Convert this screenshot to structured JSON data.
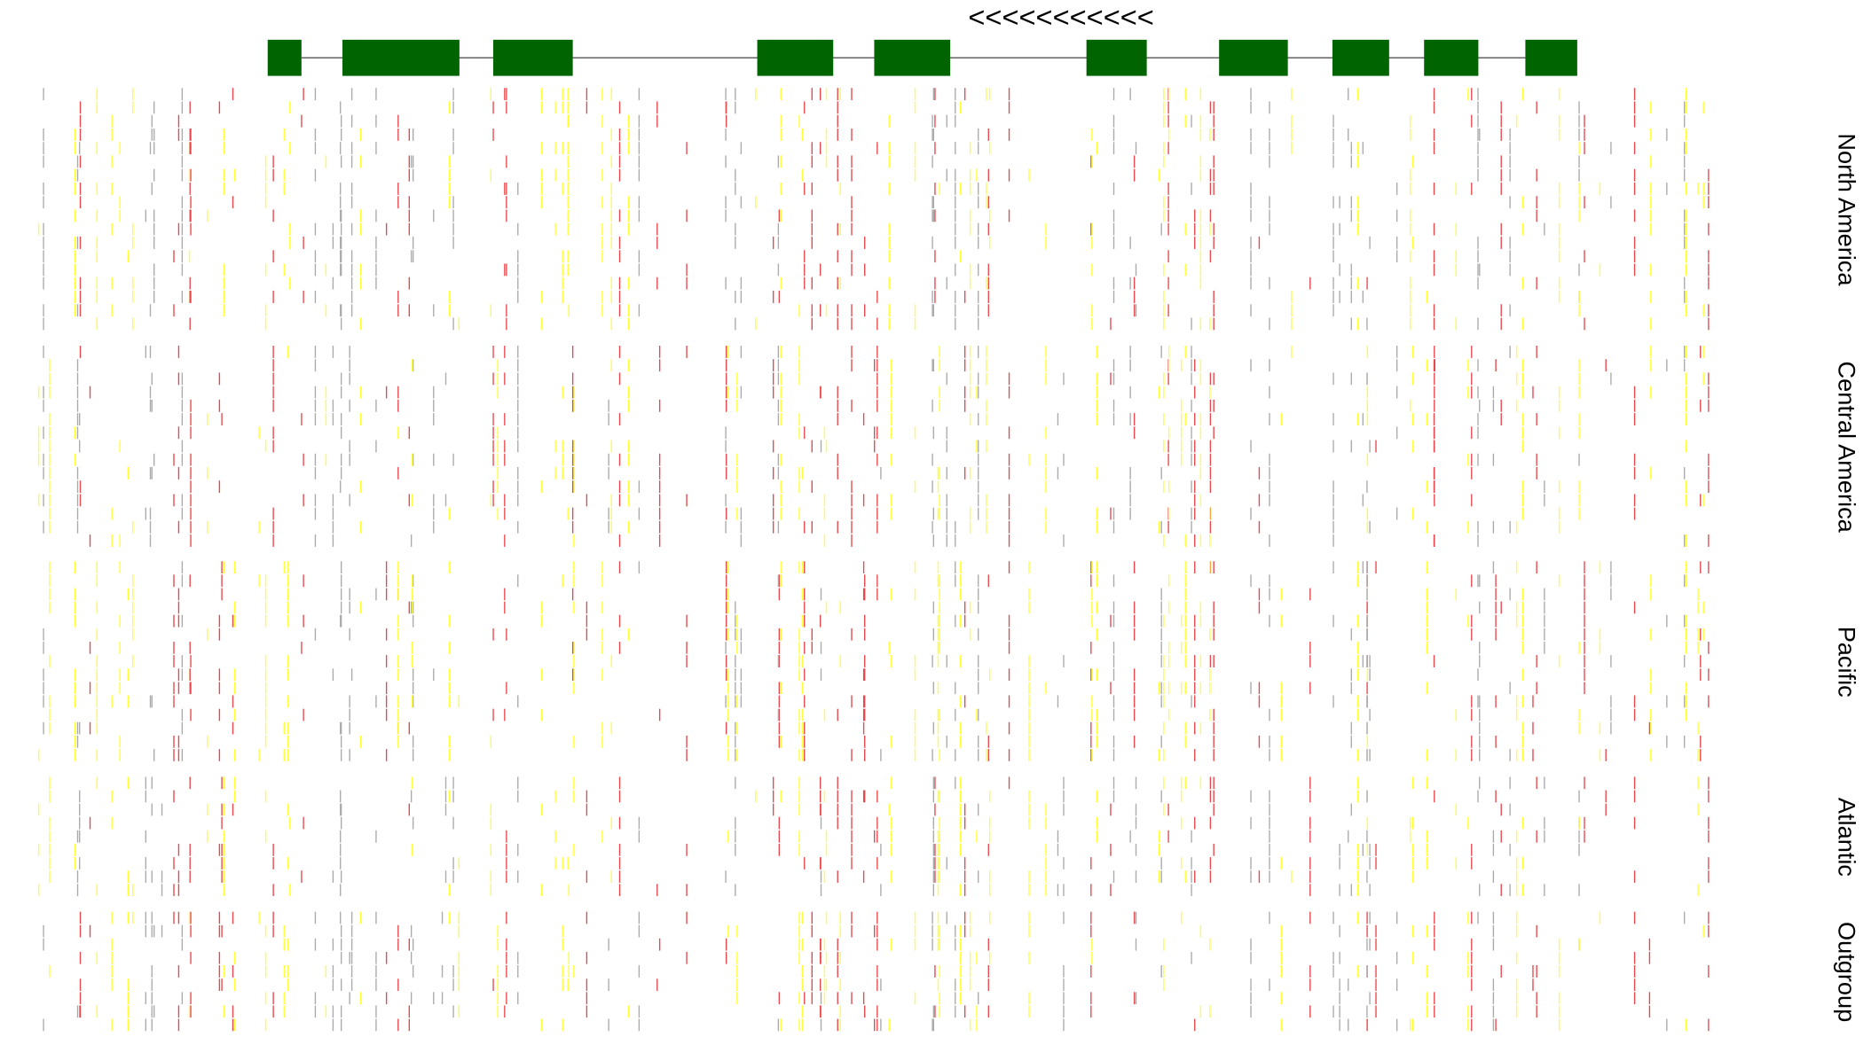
{
  "gene": {
    "direction": "<<<<<<<<<<<"
  },
  "groups": [
    {
      "label": "North America"
    },
    {
      "label": "Central America"
    },
    {
      "label": "Pacific"
    },
    {
      "label": "Atlantic"
    },
    {
      "label": "Outgroup"
    }
  ]
}
